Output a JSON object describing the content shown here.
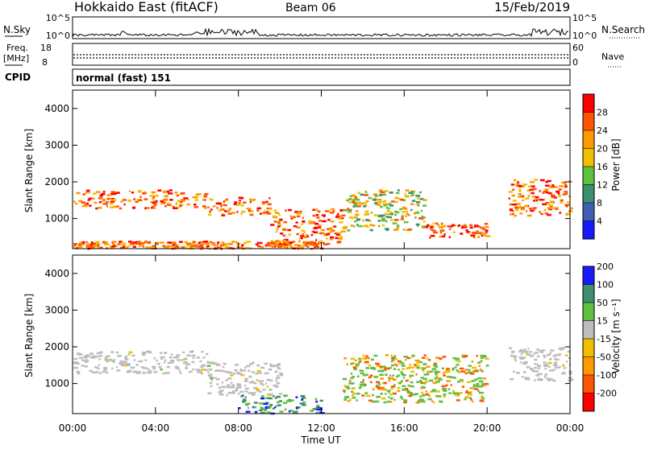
{
  "header": {
    "site": "Hokkaido East (fitACF)",
    "beam": "Beam 06",
    "date": "15/Feb/2019"
  },
  "small_panels": {
    "nsky": {
      "label": "N.Sky",
      "ticks": [
        "10^5",
        "10^0"
      ]
    },
    "nsearch": {
      "label": "N.Search",
      "ticks": [
        "10^5",
        "10^0"
      ]
    },
    "freq": {
      "label": "Freq.",
      "unit": "[MHz]",
      "ticks": [
        "18",
        "8"
      ]
    },
    "nave": {
      "label": "Nave",
      "ticks": [
        "60",
        "0"
      ]
    },
    "cpid": {
      "label": "CPID",
      "value": "normal (fast) 151"
    }
  },
  "colors": {
    "power": [
      "#1a1aff",
      "#3f5fb4",
      "#3f8f6f",
      "#5fbf3f",
      "#f0c000",
      "#ff9900",
      "#ff5500",
      "#ff0000"
    ],
    "velocity": [
      "#ff0000",
      "#ff5500",
      "#ff9900",
      "#f0c000",
      "#bdbdbd",
      "#5fbf3f",
      "#3f8f6f",
      "#1a1aff"
    ]
  },
  "chart_data": [
    {
      "type": "heatmap",
      "name": "power",
      "ylabel": "Slant Range [km]",
      "xlabel": "",
      "x_ticks": [
        "00:00",
        "04:00",
        "08:00",
        "12:00",
        "16:00",
        "20:00",
        "00:00"
      ],
      "xlim_hours": [
        0,
        24
      ],
      "y_ticks": [
        1000,
        2000,
        3000,
        4000
      ],
      "ylim": [
        180,
        4500
      ],
      "colorbar": {
        "label": "Power [dB]",
        "ticks": [
          "4",
          "8",
          "12",
          "16",
          "20",
          "24",
          "28"
        ]
      },
      "features": [
        {
          "start_hour": 0.0,
          "end_hour": 6.5,
          "range_min": 1300,
          "range_max": 1800,
          "level": "high"
        },
        {
          "start_hour": 6.5,
          "end_hour": 9.5,
          "range_min": 1100,
          "range_max": 1600,
          "level": "high"
        },
        {
          "start_hour": 9.5,
          "end_hour": 13.0,
          "range_min": 300,
          "range_max": 1300,
          "level": "high"
        },
        {
          "start_hour": 13.0,
          "end_hour": 17.0,
          "range_min": 700,
          "range_max": 1800,
          "level": "mid"
        },
        {
          "start_hour": 17.0,
          "end_hour": 20.0,
          "range_min": 500,
          "range_max": 900,
          "level": "high"
        },
        {
          "start_hour": 0.0,
          "end_hour": 12.0,
          "range_min": 200,
          "range_max": 400,
          "level": "high"
        },
        {
          "start_hour": 21.0,
          "end_hour": 24.0,
          "range_min": 1100,
          "range_max": 2100,
          "level": "high"
        }
      ]
    },
    {
      "type": "heatmap",
      "name": "velocity",
      "ylabel": "Slant Range [km]",
      "xlabel": "Time UT",
      "x_ticks": [
        "00:00",
        "04:00",
        "08:00",
        "12:00",
        "16:00",
        "20:00",
        "00:00"
      ],
      "xlim_hours": [
        0,
        24
      ],
      "y_ticks": [
        1000,
        2000,
        3000,
        4000
      ],
      "ylim": [
        180,
        4500
      ],
      "colorbar": {
        "label": "Velocity [m s⁻¹]",
        "ticks": [
          "200",
          "100",
          "50",
          "15",
          "-15",
          "-50",
          "-100",
          "-200"
        ]
      },
      "features": [
        {
          "start_hour": 0.0,
          "end_hour": 6.5,
          "range_min": 1300,
          "range_max": 1900,
          "level": "ground"
        },
        {
          "start_hour": 6.5,
          "end_hour": 10.0,
          "range_min": 700,
          "range_max": 1600,
          "level": "ground"
        },
        {
          "start_hour": 8.0,
          "end_hour": 12.0,
          "range_min": 200,
          "range_max": 700,
          "level": "positive"
        },
        {
          "start_hour": 13.0,
          "end_hour": 20.0,
          "range_min": 500,
          "range_max": 1800,
          "level": "mixed"
        },
        {
          "start_hour": 21.0,
          "end_hour": 24.0,
          "range_min": 1100,
          "range_max": 2000,
          "level": "ground"
        }
      ]
    }
  ]
}
